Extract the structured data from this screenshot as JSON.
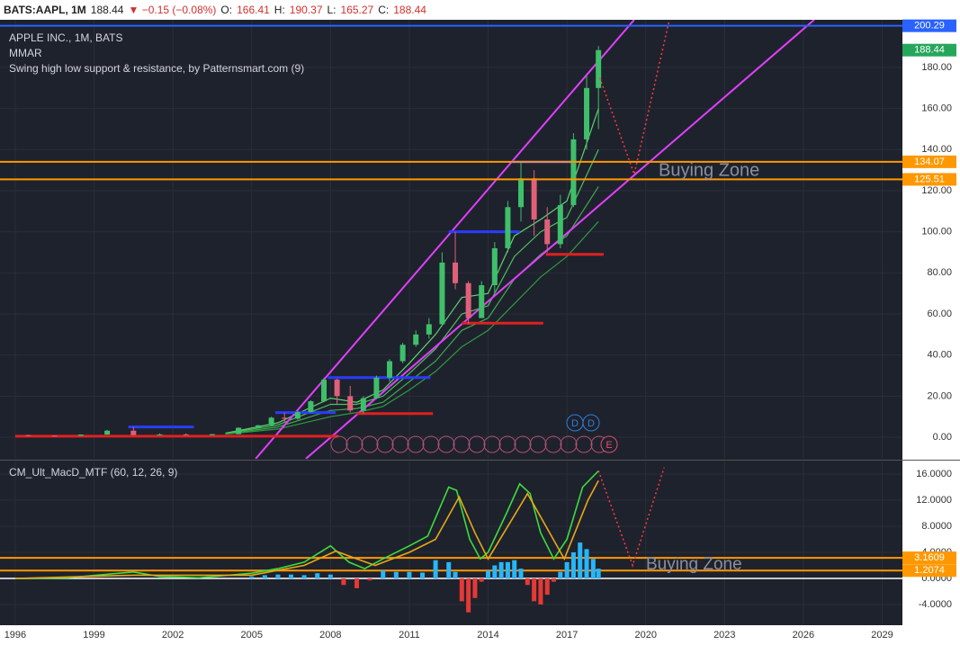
{
  "header": {
    "symbol": "BATS:AAPL, 1M",
    "price": "188.44",
    "change": "▼ −0.15 (−0.08%)",
    "ohlc": [
      {
        "label": "O:",
        "value": "166.41"
      },
      {
        "label": "H:",
        "value": "190.37"
      },
      {
        "label": "L:",
        "value": "165.27"
      },
      {
        "label": "C:",
        "value": "188.44"
      }
    ]
  },
  "chart_data": [
    {
      "type": "candlestick",
      "title": "APPLE INC., 1M, BATS",
      "indicators": [
        "MMAR",
        "Swing high low support & resistance, by Patternsmart.com (9)"
      ],
      "xlim": [
        1995.42,
        2029.77
      ],
      "ylim": [
        -10.5,
        203.2
      ],
      "grid": true,
      "yticks": [
        {
          "value": 0,
          "label": "0.00"
        },
        {
          "value": 20,
          "label": "20.00"
        },
        {
          "value": 40,
          "label": "40.00"
        },
        {
          "value": 60,
          "label": "60.00"
        },
        {
          "value": 80,
          "label": "80.00"
        },
        {
          "value": 100,
          "label": "100.00"
        },
        {
          "value": 120,
          "label": "120.00"
        },
        {
          "value": 140,
          "label": "140.00"
        },
        {
          "value": 160,
          "label": "160.00"
        },
        {
          "value": 180,
          "label": "180.00"
        }
      ],
      "x": [
        1996.5,
        1997.5,
        1998.5,
        1999.5,
        2000.5,
        2001.5,
        2002.5,
        2003.5,
        2004.5,
        2005.25,
        2005.75,
        2006.25,
        2006.75,
        2007.25,
        2007.75,
        2008.25,
        2008.75,
        2009.25,
        2009.75,
        2010.25,
        2010.75,
        2011.25,
        2011.75,
        2012.25,
        2012.75,
        2013.25,
        2013.75,
        2014.25,
        2014.75,
        2015.25,
        2015.75,
        2016.25,
        2016.75,
        2017.25,
        2017.75,
        2018.2
      ],
      "open": [
        1.0,
        0.8,
        0.7,
        1.3,
        3.2,
        1.1,
        1.4,
        1.0,
        1.5,
        4.6,
        5.8,
        9.5,
        9.0,
        12.2,
        17.5,
        28,
        20,
        13,
        19,
        29,
        37,
        45,
        50,
        55,
        85,
        75,
        58,
        74,
        92,
        112,
        126,
        106,
        94,
        113,
        145,
        170
      ],
      "high": [
        1.2,
        0.9,
        1.4,
        3.5,
        5.0,
        1.8,
        1.8,
        1.6,
        4.8,
        6.0,
        10,
        12,
        13,
        18,
        29,
        28.5,
        25,
        20,
        30,
        38,
        46,
        52,
        58,
        90,
        100,
        76,
        76,
        95,
        115,
        134,
        130,
        112,
        118,
        148,
        176,
        190.37
      ],
      "low": [
        0.6,
        0.5,
        0.6,
        1.2,
        1.0,
        1.0,
        0.9,
        0.9,
        1.4,
        4.5,
        5.5,
        7.5,
        8.5,
        12,
        17,
        16,
        12,
        11.5,
        18.5,
        27,
        36,
        44,
        48,
        54,
        72,
        55,
        58,
        70,
        90,
        105,
        98,
        90,
        92,
        112,
        140,
        150
      ],
      "close": [
        0.8,
        0.7,
        1.3,
        3.2,
        1.1,
        1.4,
        1.0,
        1.5,
        4.6,
        5.8,
        9.5,
        9.0,
        12.2,
        17.5,
        28,
        20,
        13,
        19,
        29,
        37,
        45,
        50,
        55,
        85,
        75,
        58,
        74,
        92,
        112,
        126,
        106,
        94,
        113,
        145,
        170,
        188.44
      ],
      "up_color": "#3fbf6a",
      "down_color": "#e0607a",
      "moving_averages": [
        {
          "color": "#5fd36f",
          "x": [
            2004,
            2006,
            2008,
            2009,
            2010,
            2011,
            2012,
            2013,
            2014,
            2015,
            2016,
            2017,
            2018.2
          ],
          "values": [
            2,
            7,
            19,
            17,
            23,
            36,
            50,
            68,
            70,
            98,
            106,
            115,
            160
          ]
        },
        {
          "color": "#4cc05c",
          "x": [
            2004,
            2006,
            2008,
            2009,
            2010,
            2011,
            2012,
            2013,
            2014,
            2015,
            2016,
            2017,
            2018.2
          ],
          "values": [
            1.8,
            6,
            16,
            16,
            20,
            31,
            43,
            60,
            64,
            88,
            100,
            107,
            140
          ]
        },
        {
          "color": "#3daa4d",
          "x": [
            2004,
            2006,
            2008,
            2009,
            2010,
            2011,
            2012,
            2013,
            2014,
            2015,
            2016,
            2017,
            2018.2
          ],
          "values": [
            1.6,
            5,
            13,
            14,
            17,
            27,
            37,
            52,
            58,
            77,
            89,
            98,
            122
          ]
        },
        {
          "color": "#2f9a40",
          "x": [
            2004,
            2006,
            2008,
            2009,
            2010,
            2011,
            2012,
            2013,
            2014,
            2015,
            2016,
            2017,
            2018.2
          ],
          "values": [
            1.5,
            4,
            10,
            12,
            15,
            23,
            32,
            44,
            52,
            65,
            78,
            88,
            105
          ]
        }
      ],
      "channel_lines": [
        {
          "color": "#e040fb",
          "x": [
            2005.15,
            2019.56
          ],
          "values": [
            -10.5,
            203.2
          ]
        },
        {
          "color": "#e040fb",
          "x": [
            2007.06,
            2026.41
          ],
          "values": [
            -10.5,
            203.2
          ]
        }
      ],
      "resistance": {
        "color": "#2a3cff",
        "x0": [
          2000.3,
          2005.9,
          2007.9,
          2012.5,
          2014.9
        ],
        "x1": [
          2002.8,
          2008.2,
          2011.8,
          2015.2,
          2017.2
        ],
        "values": [
          5,
          12,
          29,
          100,
          134
        ]
      },
      "support": {
        "color": "#e02020",
        "x0": [
          1996,
          2009.0,
          2013.0,
          2016.2
        ],
        "x1": [
          2008.3,
          2011.9,
          2016.1,
          2018.4
        ],
        "values": [
          0.5,
          11.5,
          55.5,
          89
        ]
      },
      "levels": [
        {
          "value": 200.29,
          "color": "#2962ff"
        },
        {
          "value": 134.07,
          "color": "#ff9800"
        },
        {
          "value": 125.51,
          "color": "#ff9800"
        }
      ],
      "last_price": 188.44,
      "last_color": "#26a65b",
      "projection": {
        "color": "#ff3b3b",
        "x": [
          2018.25,
          2019.56,
          2020.93
        ],
        "values": [
          175,
          128,
          205
        ]
      },
      "annotation": "Buying Zone",
      "markers": [
        "D",
        "D",
        "E"
      ]
    },
    {
      "type": "macd",
      "title": "CM_Ult_MacD_MTF (60, 12, 26, 9)",
      "xlim": [
        1995.42,
        2029.77
      ],
      "ylim": [
        -7.17,
        17.93
      ],
      "grid": true,
      "xticks": [
        1996,
        1999,
        2002,
        2005,
        2008,
        2011,
        2014,
        2017,
        2020,
        2023,
        2026,
        2029
      ],
      "yticks": [
        {
          "value": -4,
          "label": "-4.0000"
        },
        {
          "value": 0,
          "label": "0.0000"
        },
        {
          "value": 4,
          "label": "4.0000"
        },
        {
          "value": 8,
          "label": "8.0000"
        },
        {
          "value": 12,
          "label": "12.0000"
        },
        {
          "value": 16,
          "label": "16.0000"
        }
      ],
      "series": [
        {
          "color": "#3ddc3d",
          "x": [
            1996,
            1998,
            2000.5,
            2001.5,
            2003,
            2005,
            2006,
            2007,
            2008,
            2008.7,
            2009.3,
            2010,
            2011,
            2011.7,
            2012.5,
            2012.8,
            2013.3,
            2013.7,
            2014,
            2014.7,
            2015.2,
            2015.6,
            2016,
            2016.5,
            2017,
            2017.6,
            2018.2
          ],
          "values": [
            0,
            0.1,
            1.0,
            0.3,
            0.1,
            0.8,
            1.5,
            2.5,
            5.0,
            2.5,
            1.5,
            3.0,
            5,
            6.5,
            14,
            13.5,
            6,
            3.0,
            4,
            10,
            14.5,
            13,
            7,
            3.0,
            6,
            14,
            16.5
          ]
        },
        {
          "color": "#e6a817",
          "x": [
            1996,
            2000.5,
            2002,
            2005,
            2007,
            2008.2,
            2009,
            2009.7,
            2011,
            2012,
            2012.9,
            2013.5,
            2014,
            2014.9,
            2015.5,
            2016.2,
            2016.9,
            2017.8,
            2018.2
          ],
          "values": [
            0,
            0.5,
            0.5,
            0.5,
            2,
            4.2,
            3,
            2,
            4,
            6,
            12.5,
            7,
            3,
            9,
            13,
            8,
            3,
            12,
            15
          ]
        }
      ],
      "histogram": {
        "up_color": "#29b6f6",
        "down_color": "#e53935",
        "x": [
          2005,
          2005.5,
          2006,
          2006.5,
          2007,
          2007.5,
          2008,
          2008.5,
          2009,
          2009.5,
          2010,
          2010.5,
          2011,
          2011.5,
          2012,
          2012.5,
          2012.75,
          2013,
          2013.25,
          2013.5,
          2013.75,
          2014,
          2014.25,
          2014.5,
          2014.75,
          2015,
          2015.25,
          2015.5,
          2015.75,
          2016,
          2016.25,
          2016.5,
          2016.75,
          2017,
          2017.25,
          2017.5,
          2017.75,
          2018,
          2018.2
        ],
        "values": [
          0.3,
          0.5,
          0.6,
          0.6,
          0.5,
          0.8,
          0.6,
          -1.0,
          -1.5,
          -0.3,
          1.2,
          1.0,
          1.0,
          0.9,
          2.8,
          2.5,
          1.0,
          -3.5,
          -5.2,
          -3.0,
          -0.5,
          1.2,
          2.0,
          2.5,
          2.5,
          2.8,
          1.5,
          -1.0,
          -3.5,
          -4.0,
          -2.5,
          -0.5,
          1.0,
          2.5,
          4.0,
          5.5,
          4.5,
          3.0,
          1.5
        ]
      },
      "levels": [
        {
          "value": 3.1609,
          "color": "#ff9800"
        },
        {
          "value": 1.2074,
          "color": "#ff9800"
        }
      ],
      "zero_line_color": "#ffffff",
      "projection": {
        "color": "#ff3b3b",
        "x": [
          2018.2,
          2019.5,
          2020.7
        ],
        "values": [
          16.5,
          2,
          17
        ]
      },
      "annotation": "Buying Zone"
    }
  ]
}
